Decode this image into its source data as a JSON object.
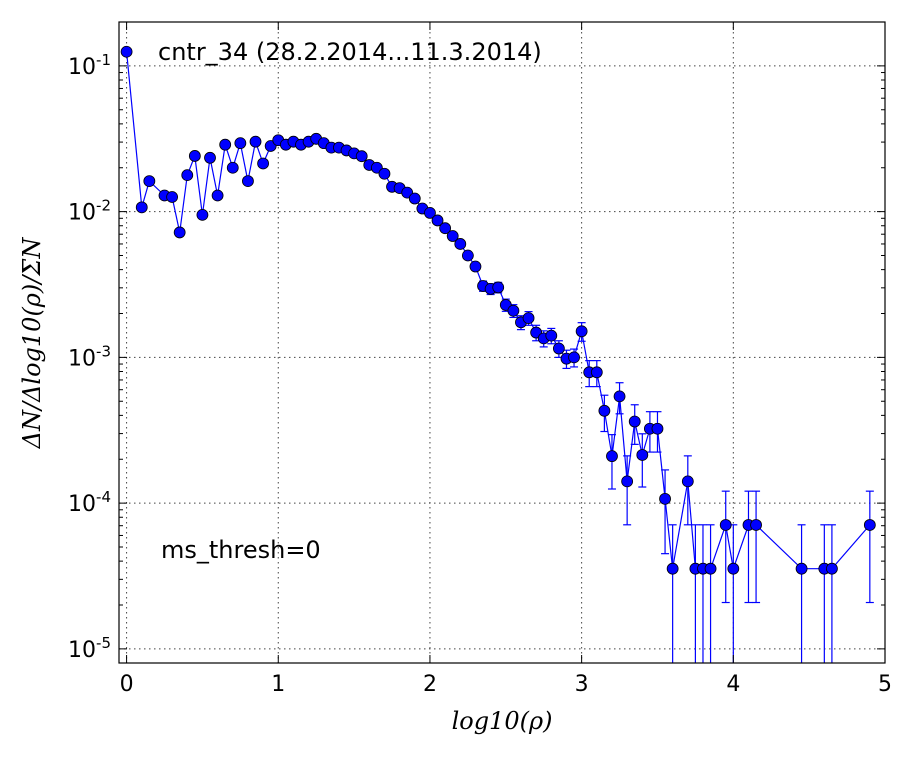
{
  "chart_data": {
    "type": "line",
    "title": "cntr_34 (28.2.2014...11.3.2014)",
    "annotation": "ms_thresh=0",
    "xlabel": "log10(ρ)",
    "ylabel": "ΔN/Δlog10(ρ)/ΣN",
    "xlim": [
      -0.05,
      5
    ],
    "ylim": [
      8e-06,
      0.2
    ],
    "yscale": "log",
    "grid": true,
    "x_ticks": [
      0,
      1,
      2,
      3,
      4,
      5
    ],
    "x_tick_labels": [
      "0",
      "1",
      "2",
      "3",
      "4",
      "5"
    ],
    "y_ticks": [
      1e-05,
      0.0001,
      0.001,
      0.01,
      0.1
    ],
    "y_tick_labels": [
      {
        "base": "10",
        "exp": "-5"
      },
      {
        "base": "10",
        "exp": "-4"
      },
      {
        "base": "10",
        "exp": "-3"
      },
      {
        "base": "10",
        "exp": "-2"
      },
      {
        "base": "10",
        "exp": "-1"
      }
    ],
    "color": "#0000ff",
    "series": [
      {
        "x": [
          0,
          0.1,
          0.15,
          0.25,
          0.3,
          0.35,
          0.4,
          0.45,
          0.5,
          0.55,
          0.6,
          0.65,
          0.7,
          0.75,
          0.8,
          0.85,
          0.9,
          0.95,
          1.0,
          1.05,
          1.1,
          1.15,
          1.2,
          1.25,
          1.3,
          1.35,
          1.4,
          1.45,
          1.5,
          1.55,
          1.6,
          1.65,
          1.7,
          1.75,
          1.8,
          1.85,
          1.9,
          1.95,
          2.0,
          2.05,
          2.1,
          2.15,
          2.2,
          2.25,
          2.3,
          2.35,
          2.4,
          2.45,
          2.5,
          2.55,
          2.6,
          2.65,
          2.7,
          2.75,
          2.8,
          2.85,
          2.9,
          2.95,
          3.0,
          3.05,
          3.1,
          3.15,
          3.2,
          3.25,
          3.3,
          3.35,
          3.4,
          3.45,
          3.5,
          3.55,
          3.6,
          3.7,
          3.75,
          3.8,
          3.85,
          3.95,
          4.0,
          4.1,
          4.15,
          4.45,
          4.6,
          4.65,
          4.9
        ],
        "y": [
          0.125,
          0.0107,
          0.0162,
          0.0129,
          0.0126,
          0.0072,
          0.0178,
          0.0241,
          0.0095,
          0.0234,
          0.0129,
          0.0288,
          0.02,
          0.0295,
          0.0162,
          0.0302,
          0.0214,
          0.0282,
          0.0309,
          0.0288,
          0.0302,
          0.0288,
          0.0302,
          0.0316,
          0.0295,
          0.0275,
          0.0275,
          0.0263,
          0.0251,
          0.024,
          0.0209,
          0.02,
          0.0182,
          0.0148,
          0.0145,
          0.0135,
          0.0123,
          0.0105,
          0.0098,
          0.0087,
          0.0077,
          0.0068,
          0.006,
          0.005,
          0.0042,
          0.00309,
          0.00295,
          0.00302,
          0.00229,
          0.00209,
          0.00174,
          0.00186,
          0.00148,
          0.00135,
          0.00141,
          0.00115,
          0.00098,
          0.001,
          0.00151,
          0.00079,
          0.00079,
          0.00043,
          0.00021,
          0.00054,
          0.000141,
          0.000363,
          0.000214,
          0.000324,
          0.000324,
          0.000107,
          3.55e-05,
          0.000141,
          3.55e-05,
          3.55e-05,
          3.55e-05,
          7.08e-05,
          3.55e-05,
          7.08e-05,
          7.08e-05,
          3.55e-05,
          3.55e-05,
          3.55e-05,
          7.08e-05
        ],
        "yerr": [
          0,
          0,
          0,
          0,
          0,
          0,
          0,
          0,
          0,
          0,
          0,
          0,
          0,
          0,
          0,
          0,
          0,
          0,
          0,
          0,
          0,
          0,
          0,
          0,
          0,
          0,
          0,
          0,
          0,
          0,
          0,
          0,
          0,
          0,
          0,
          0,
          0,
          0,
          0,
          0,
          0,
          0,
          0,
          0,
          0,
          0.00025,
          0.00025,
          0.00025,
          0.00022,
          0.00021,
          0.00019,
          0.0002,
          0.00018,
          0.00017,
          0.00017,
          0.00015,
          0.00014,
          0.00014,
          0.00022,
          0.00016,
          0.00016,
          0.00012,
          8.5e-05,
          0.00013,
          7e-05,
          0.00011,
          8.5e-05,
          0.0001,
          0.0001,
          6.2e-05,
          3.55e-05,
          7e-05,
          3.55e-05,
          3.55e-05,
          3.55e-05,
          5e-05,
          3.55e-05,
          5e-05,
          5e-05,
          3.55e-05,
          3.55e-05,
          3.55e-05,
          5e-05
        ]
      }
    ]
  }
}
